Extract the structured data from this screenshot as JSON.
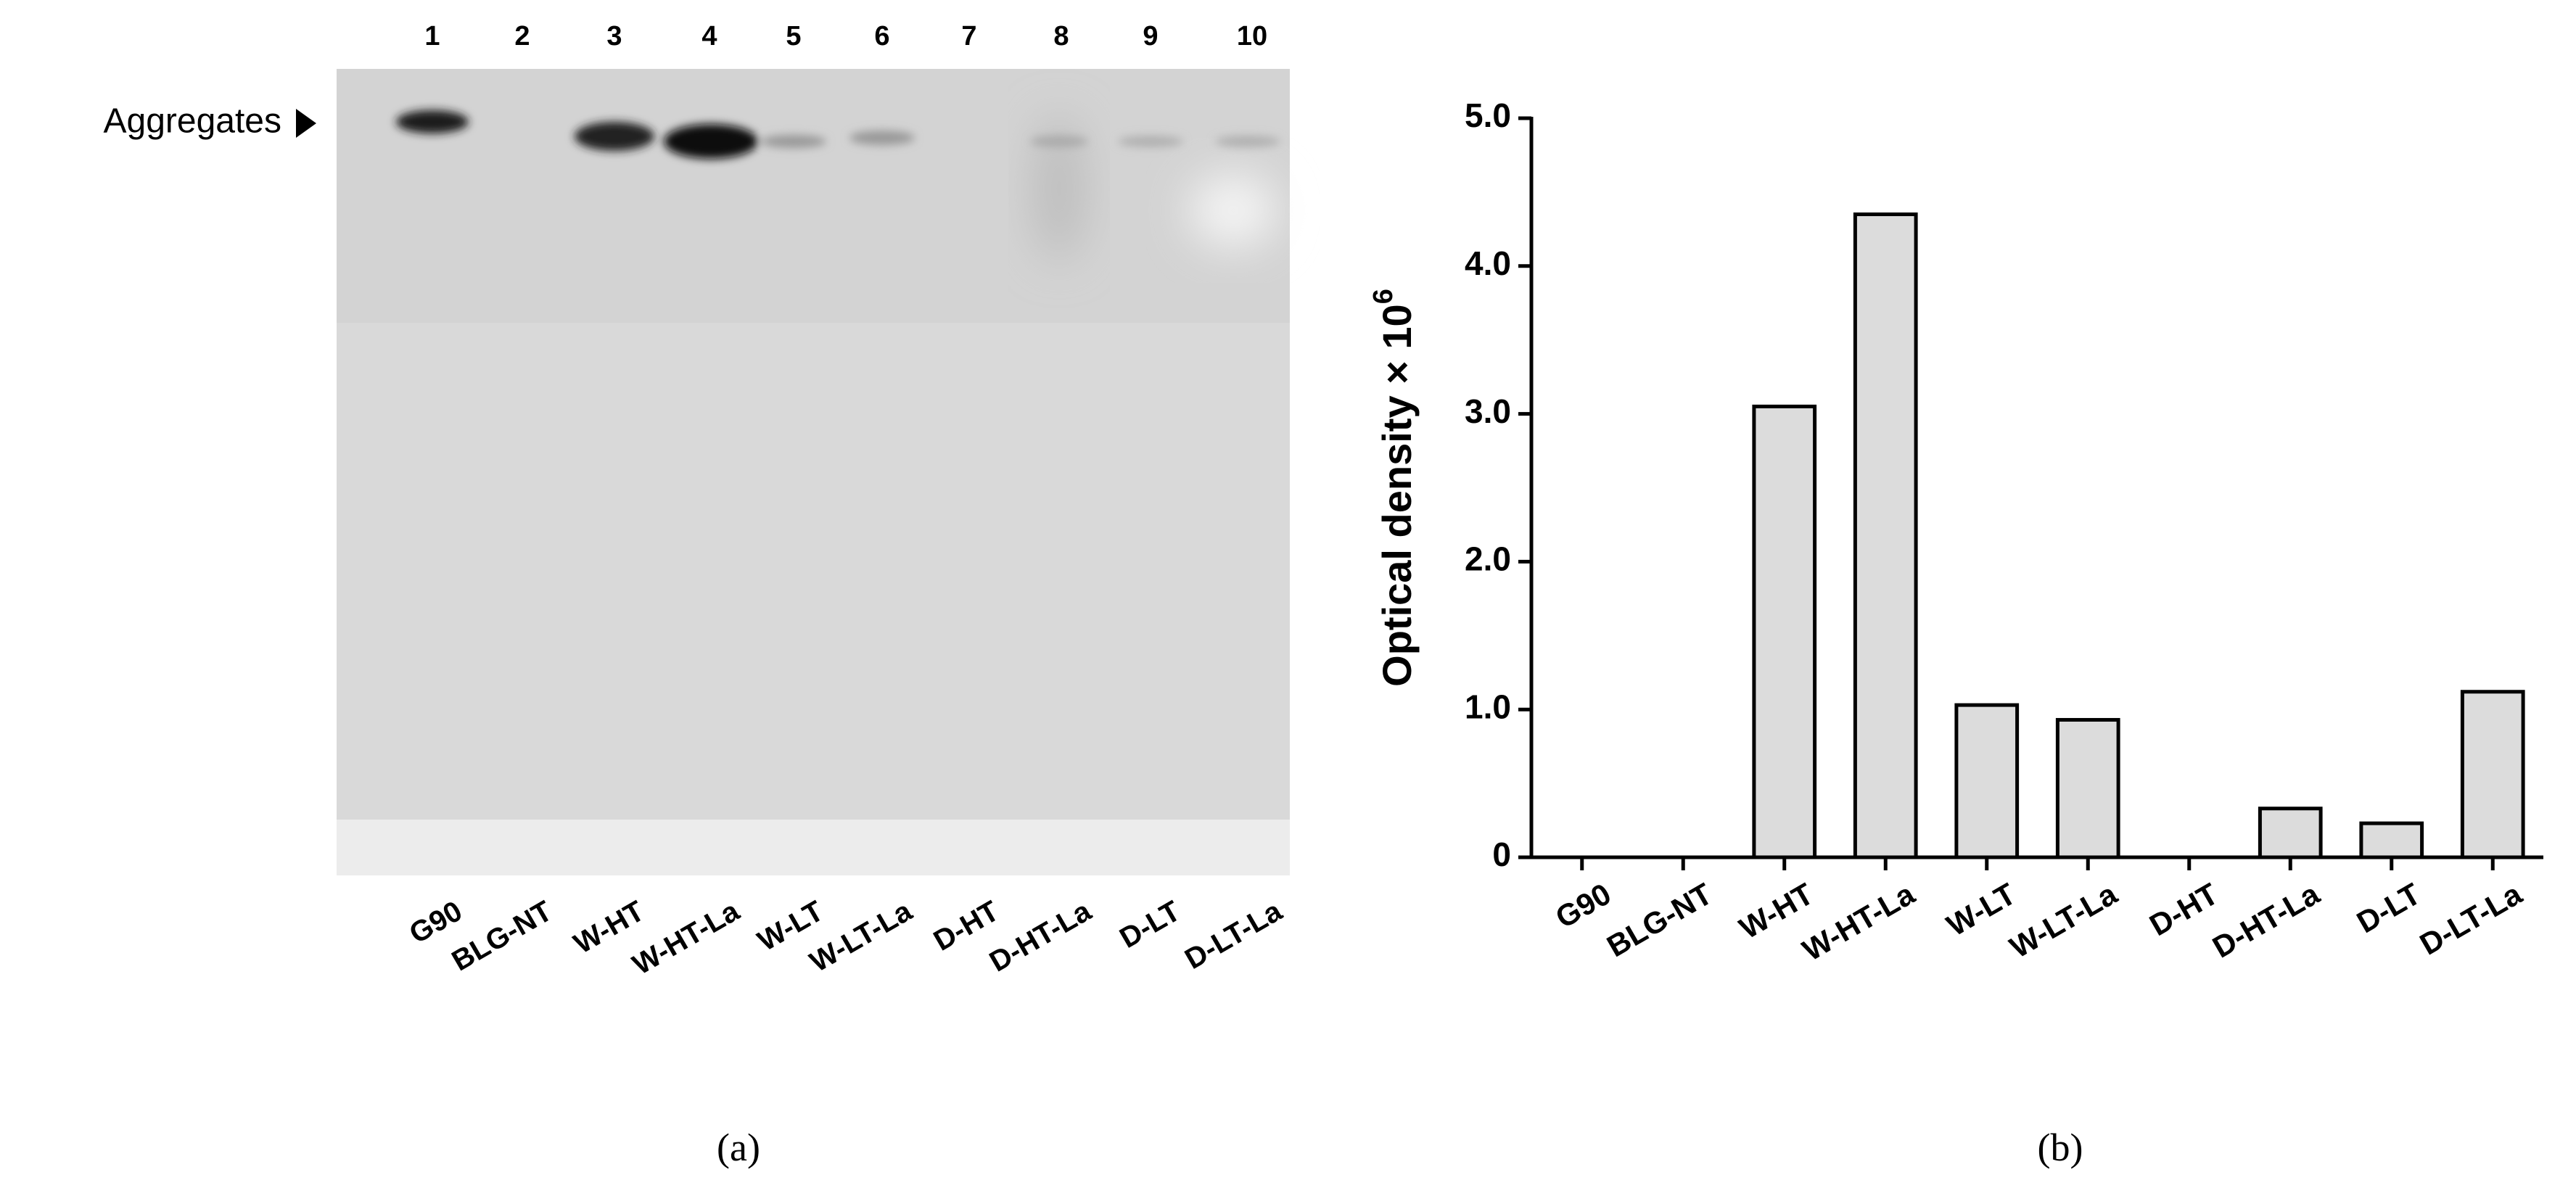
{
  "gel": {
    "marker": "Aggregates",
    "lanes": [
      {
        "number": "1",
        "label": "G90"
      },
      {
        "number": "2",
        "label": "BLG-NT"
      },
      {
        "number": "3",
        "label": "W-HT"
      },
      {
        "number": "4",
        "label": "W-HT-La"
      },
      {
        "number": "5",
        "label": "W-LT"
      },
      {
        "number": "6",
        "label": "W-LT-La"
      },
      {
        "number": "7",
        "label": "D-HT"
      },
      {
        "number": "8",
        "label": "D-HT-La"
      },
      {
        "number": "9",
        "label": "D-LT"
      },
      {
        "number": "10",
        "label": "D-LT-La"
      }
    ],
    "caption": "(a)"
  },
  "chart_data": {
    "type": "bar",
    "y_label": "Optical density × 10",
    "y_label_exponent": "6",
    "categories": [
      "G90",
      "BLG-NT",
      "W-HT",
      "W-HT-La",
      "W-LT",
      "W-LT-La",
      "D-HT",
      "D-HT-La",
      "D-LT",
      "D-LT-La"
    ],
    "values": [
      0,
      0,
      3.05,
      4.35,
      1.03,
      0.93,
      0,
      0.33,
      0.23,
      1.12
    ],
    "color": "#dcdcdc",
    "ylim": [
      0,
      5
    ],
    "yticks": [
      0,
      {
        "value": 1,
        "label": "1.0"
      },
      {
        "value": 2,
        "label": "2.0"
      },
      {
        "value": 3,
        "label": "3.0"
      },
      {
        "value": 4,
        "label": "4.0"
      },
      {
        "value": 5,
        "label": "5.0"
      }
    ],
    "caption": "(b)"
  }
}
